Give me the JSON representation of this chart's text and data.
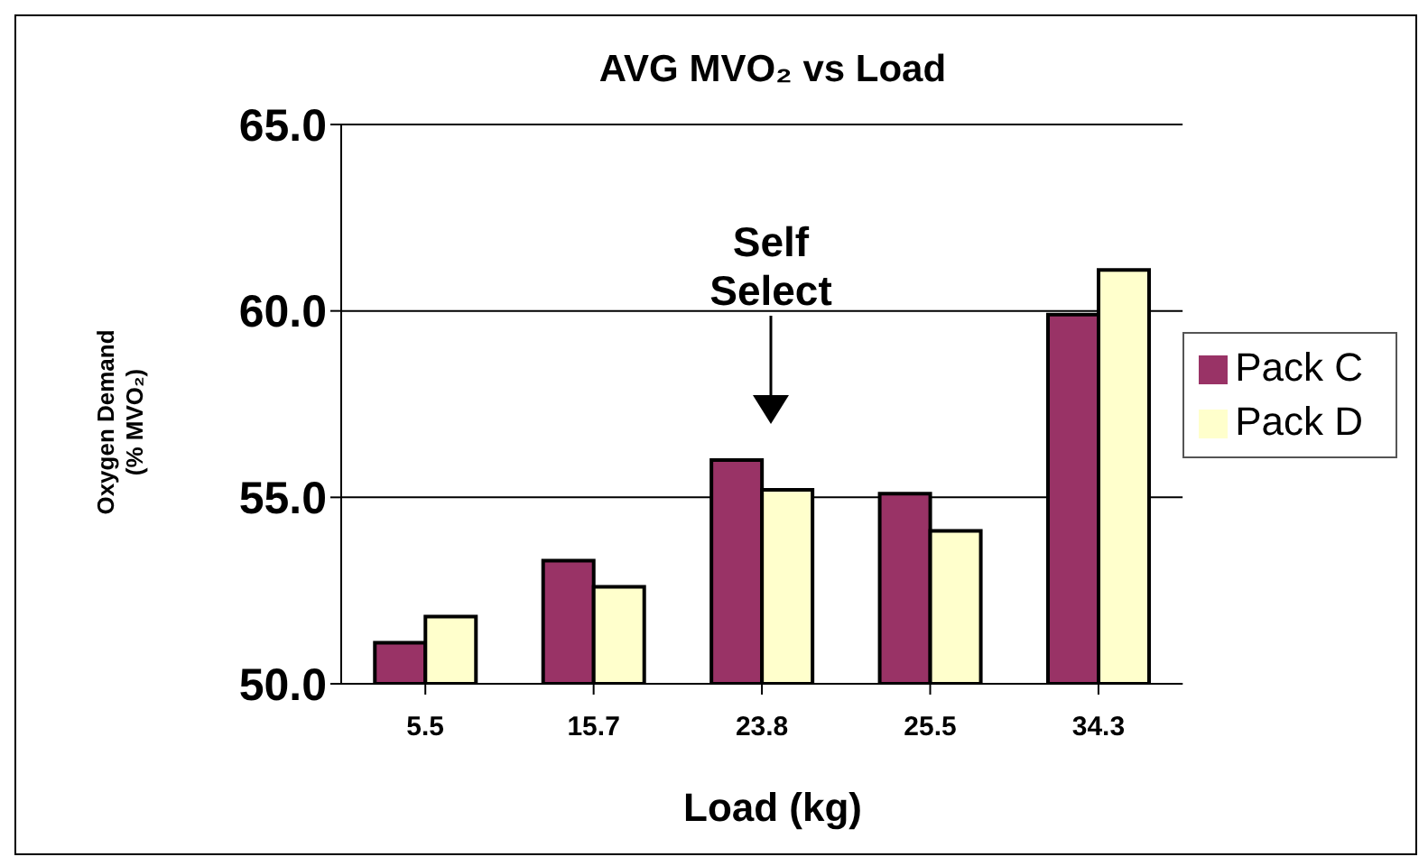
{
  "chart_data": {
    "type": "bar",
    "title": "AVG MVO₂ vs Load",
    "xlabel": "Load (kg)",
    "ylabel": "Oxygen Demand\n(% MVO₂)",
    "categories": [
      "5.5",
      "15.7",
      "23.8",
      "25.5",
      "34.3"
    ],
    "series": [
      {
        "name": "Pack C",
        "color": "#993366",
        "values": [
          51.1,
          53.3,
          56.0,
          55.1,
          59.9
        ]
      },
      {
        "name": "Pack D",
        "color": "#ffffcc",
        "values": [
          51.8,
          52.6,
          55.2,
          54.1,
          61.1
        ]
      }
    ],
    "ylim": [
      50,
      65
    ],
    "yticks": [
      {
        "value": 50,
        "label": "50.0"
      },
      {
        "value": 55,
        "label": "55.0"
      },
      {
        "value": 60,
        "label": "60.0"
      },
      {
        "value": 65,
        "label": "65.0"
      }
    ],
    "grid": "y",
    "legend": "right",
    "annotations": [
      "Self Select"
    ]
  }
}
